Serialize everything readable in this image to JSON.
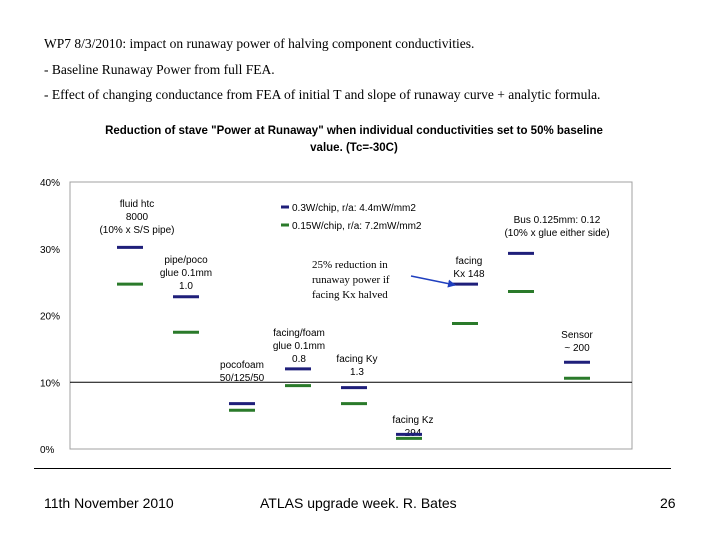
{
  "slide": {
    "lines": [
      "WP7 8/3/2010: impact on runaway power of halving component conductivities.",
      "- Baseline Runaway Power from full FEA.",
      "- Effect of changing conductance from FEA of initial T and slope of runaway curve + analytic formula."
    ],
    "footer": {
      "date": "11th November 2010",
      "center": "ATLAS upgrade week. R. Bates",
      "page": "26"
    }
  },
  "colors": {
    "navy": "#1f1f7a",
    "green": "#2a7a2a",
    "plot_border": "#a0a0a0",
    "grid": "#000000",
    "arrow": "#1f3fbf"
  },
  "chart_data": {
    "type": "scatter",
    "marker": "horizontal-dash",
    "title": "Reduction of stave \"Power at Runaway\" when individual conductivities set to 50% baseline value. (Tc=-30C)",
    "title_lines": [
      "Reduction of stave \"Power at Runaway\" when individual conductivities set to 50% baseline",
      "value. (Tc=-30C)"
    ],
    "xlabel": "",
    "ylabel": "",
    "ylim": [
      0,
      40
    ],
    "yticks": [
      "0%",
      "10%",
      "20%",
      "30%",
      "40%"
    ],
    "ytick_values": [
      0,
      10,
      20,
      30,
      40
    ],
    "gridline_at": 10,
    "legend": "top-center",
    "series": [
      {
        "name": "0.3W/chip, r/a: 4.4mW/mm2",
        "color": "#1f1f7a",
        "values": [
          30.2,
          22.8,
          6.8,
          12.0,
          9.2,
          2.2,
          24.7,
          29.3,
          13.0
        ]
      },
      {
        "name": "0.15W/chip, r/a: 7.2mW/mm2",
        "color": "#2a7a2a",
        "values": [
          24.7,
          17.5,
          5.8,
          9.5,
          6.8,
          1.6,
          18.8,
          23.6,
          10.6
        ]
      }
    ],
    "categories": [
      {
        "lines": [
          "fluid htc",
          "8000",
          "(10% x S/S pipe)"
        ]
      },
      {
        "lines": [
          "pipe/poco",
          "glue 0.1mm",
          "1.0"
        ]
      },
      {
        "lines": [
          "pocofoam",
          "50/125/50"
        ]
      },
      {
        "lines": [
          "facing/foam",
          "glue 0.1mm",
          "0.8"
        ]
      },
      {
        "lines": [
          "facing Ky",
          "1.3"
        ]
      },
      {
        "lines": [
          "facing Kz",
          "294"
        ]
      },
      {
        "lines": [
          "facing",
          "Kx 148"
        ]
      },
      {
        "lines": [
          "Bus 0.125mm: 0.12",
          "(10% x glue either side)"
        ]
      },
      {
        "lines": [
          "Sensor",
          "~ 200"
        ]
      }
    ],
    "annotation": {
      "lines": [
        "25% reduction in",
        "runaway power if",
        "facing Kx halved"
      ]
    }
  }
}
